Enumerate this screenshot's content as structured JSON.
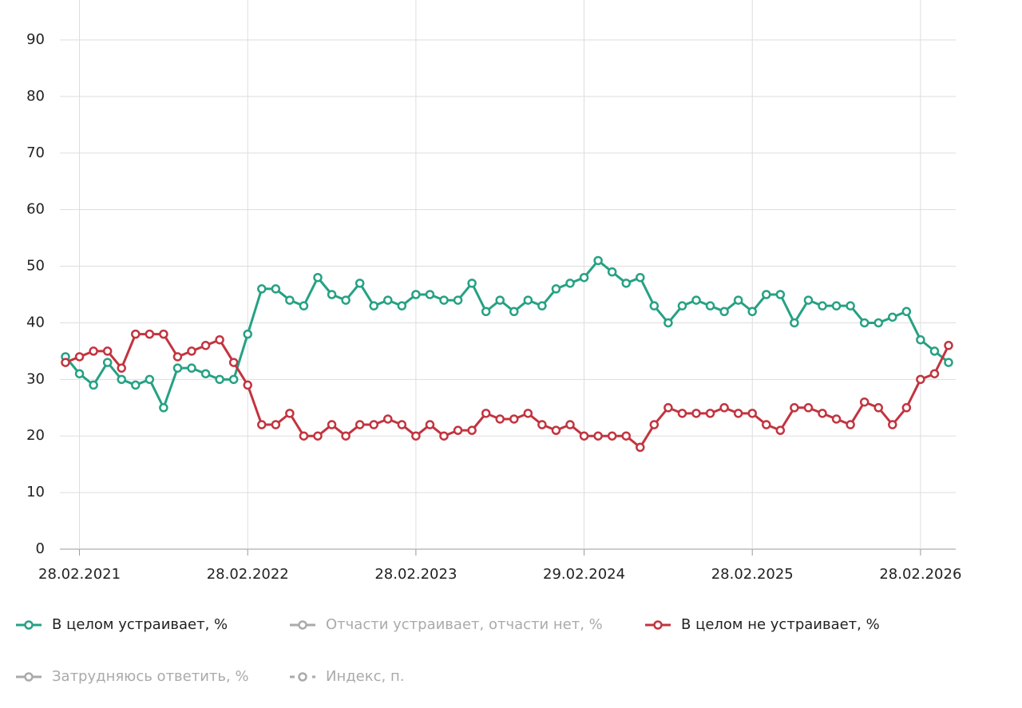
{
  "chart_data": {
    "type": "line",
    "categories": [
      null,
      "28.02.2021",
      null,
      null,
      null,
      null,
      null,
      null,
      null,
      null,
      null,
      null,
      null,
      "28.02.2022",
      null,
      null,
      null,
      null,
      null,
      null,
      null,
      null,
      null,
      null,
      null,
      "28.02.2023",
      null,
      null,
      null,
      null,
      null,
      null,
      null,
      null,
      null,
      null,
      null,
      "29.02.2024",
      null,
      null,
      null,
      null,
      null,
      null,
      null,
      null,
      null,
      null,
      null,
      "28.02.2025",
      null,
      null,
      null,
      null,
      null,
      null,
      null,
      null,
      null,
      null,
      null,
      "28.02.2026",
      null,
      null
    ],
    "series": [
      {
        "name": "В целом устраивает, %",
        "color": "#26a183",
        "visible": true,
        "values": [
          34,
          31,
          29,
          33,
          30,
          29,
          30,
          25,
          32,
          32,
          31,
          30,
          30,
          38,
          46,
          46,
          44,
          43,
          48,
          45,
          44,
          47,
          43,
          44,
          43,
          45,
          45,
          44,
          44,
          47,
          42,
          44,
          42,
          44,
          43,
          46,
          47,
          48,
          51,
          49,
          47,
          48,
          43,
          40,
          43,
          44,
          43,
          42,
          44,
          42,
          45,
          45,
          40,
          44,
          43,
          43,
          43,
          40,
          40,
          41,
          42,
          37,
          35,
          33
        ]
      },
      {
        "name": "Отчасти устраивает, отчасти нет, %",
        "color": "#aaaaaa",
        "visible": false,
        "values": [
          null,
          null,
          null,
          null,
          null,
          null,
          null,
          null,
          null,
          null,
          null,
          null,
          null,
          null,
          null,
          null,
          null,
          null,
          null,
          null,
          null,
          null,
          null,
          null,
          null,
          null,
          null,
          null,
          null,
          null,
          null,
          null,
          null,
          null,
          null,
          null,
          null,
          null,
          null,
          null,
          null,
          null,
          null,
          null,
          null,
          null,
          null,
          null,
          null,
          null,
          null,
          null,
          null,
          null,
          null,
          null,
          null,
          null,
          null,
          null,
          null,
          null,
          null,
          null
        ]
      },
      {
        "name": "В целом не устраивает, %",
        "color": "#c2343f",
        "visible": true,
        "values": [
          33,
          34,
          35,
          35,
          32,
          38,
          38,
          38,
          34,
          35,
          36,
          37,
          33,
          29,
          22,
          22,
          24,
          20,
          20,
          22,
          20,
          22,
          22,
          23,
          22,
          20,
          22,
          20,
          21,
          21,
          24,
          23,
          23,
          24,
          22,
          21,
          22,
          20,
          20,
          20,
          20,
          18,
          22,
          25,
          24,
          24,
          24,
          25,
          24,
          24,
          22,
          21,
          25,
          25,
          24,
          23,
          22,
          26,
          25,
          22,
          25,
          30,
          31,
          36
        ]
      },
      {
        "name": "Затрудняюсь ответить, %",
        "color": "#aaaaaa",
        "visible": false,
        "values": [
          null,
          null,
          null,
          null,
          null,
          null,
          null,
          null,
          null,
          null,
          null,
          null,
          null,
          null,
          null,
          null,
          null,
          null,
          null,
          null,
          null,
          null,
          null,
          null,
          null,
          null,
          null,
          null,
          null,
          null,
          null,
          null,
          null,
          null,
          null,
          null,
          null,
          null,
          null,
          null,
          null,
          null,
          null,
          null,
          null,
          null,
          null,
          null,
          null,
          null,
          null,
          null,
          null,
          null,
          null,
          null,
          null,
          null,
          null,
          null,
          null,
          null,
          null,
          null
        ]
      },
      {
        "name": "Индекс, п.",
        "color": "#aaaaaa",
        "visible": false,
        "dash": true,
        "values": [
          null,
          null,
          null,
          null,
          null,
          null,
          null,
          null,
          null,
          null,
          null,
          null,
          null,
          null,
          null,
          null,
          null,
          null,
          null,
          null,
          null,
          null,
          null,
          null,
          null,
          null,
          null,
          null,
          null,
          null,
          null,
          null,
          null,
          null,
          null,
          null,
          null,
          null,
          null,
          null,
          null,
          null,
          null,
          null,
          null,
          null,
          null,
          null,
          null,
          null,
          null,
          null,
          null,
          null,
          null,
          null,
          null,
          null,
          null,
          null,
          null,
          null,
          null,
          null
        ]
      }
    ],
    "ylim": [
      0,
      90
    ],
    "yticks": [
      0,
      10,
      20,
      30,
      40,
      50,
      60,
      70,
      80,
      90
    ],
    "grid": true
  }
}
